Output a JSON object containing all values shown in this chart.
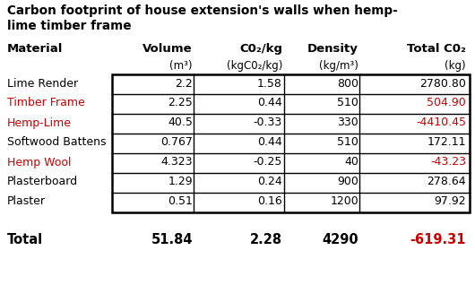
{
  "title_line1": "Carbon footprint of house extension's walls when hemp-",
  "title_line2": "lime timber frame",
  "col_headers": [
    "Material",
    "Volume",
    "C0₂/kg",
    "Density",
    "Total C0₂"
  ],
  "col_subheaders": [
    "",
    "(m³)",
    "(kgC0₂/kg)",
    "(kg/m³)",
    "(kg)"
  ],
  "rows": [
    [
      "Lime Render",
      "2.2",
      "1.58",
      "800",
      "2780.80"
    ],
    [
      "Timber Frame",
      "2.25",
      "0.44",
      "510",
      "504.90"
    ],
    [
      "Hemp-Lime",
      "40.5",
      "-0.33",
      "330",
      "-4410.45"
    ],
    [
      "Softwood Battens",
      "0.767",
      "0.44",
      "510",
      "172.11"
    ],
    [
      "Hemp Wool",
      "4.323",
      "-0.25",
      "40",
      "-43.23"
    ],
    [
      "Plasterboard",
      "1.29",
      "0.24",
      "900",
      "278.64"
    ],
    [
      "Plaster",
      "0.51",
      "0.16",
      "1200",
      "97.92"
    ]
  ],
  "total_row": [
    "Total",
    "51.84",
    "2.28",
    "4290",
    "-619.31"
  ],
  "red_rows": [
    1,
    2,
    4
  ],
  "red_color": "#cc0000",
  "black_color": "#000000",
  "bg_color": "#ffffff",
  "title_fontsize": 9.8,
  "header_fontsize": 9.5,
  "subheader_fontsize": 8.5,
  "data_fontsize": 9.0,
  "total_fontsize": 10.5
}
